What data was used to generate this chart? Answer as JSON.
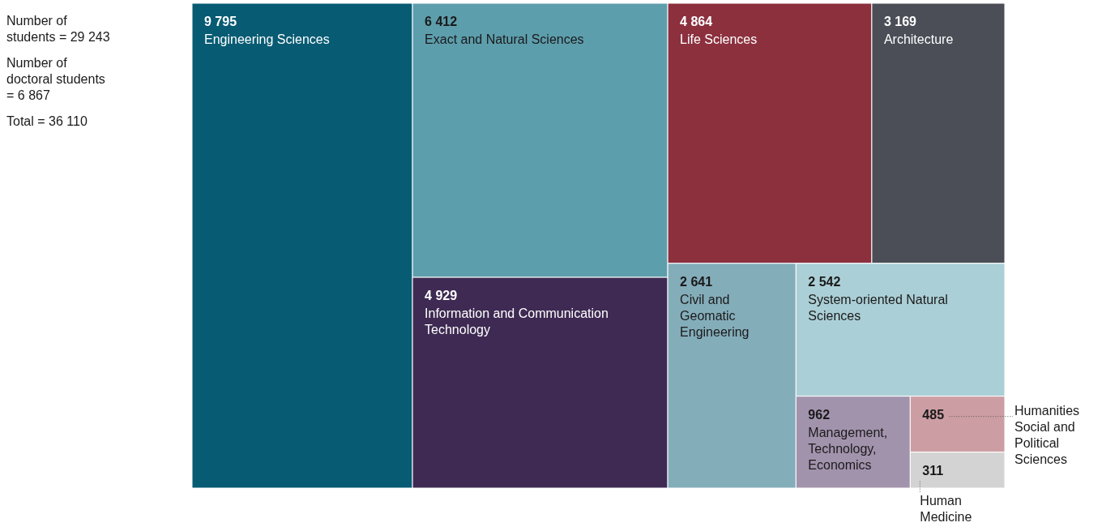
{
  "chart_data": {
    "type": "other",
    "categories": [
      "Engineering Sciences",
      "Exact and Natural Sciences",
      "Information and Communication Technology",
      "Life Sciences",
      "Architecture",
      "Civil and Geomatic Engineering",
      "System-oriented Natural Sciences",
      "Management, Technology, Economics",
      "Humanities Social and Political Sciences",
      "Human Medicine"
    ],
    "values": [
      9795,
      6412,
      4929,
      4864,
      3169,
      2641,
      2542,
      962,
      485,
      311
    ],
    "value_labels": [
      "9 795",
      "6 412",
      "4 929",
      "4 864",
      "3 169",
      "2 641",
      "2 542",
      "962",
      "485",
      "311"
    ],
    "colors": [
      "#075b73",
      "#5d9ead",
      "#3e2a52",
      "#8c303e",
      "#4b4e57",
      "#84adba",
      "#abcfd6",
      "#a293ad",
      "#cc9ea4",
      "#d3d3d3"
    ],
    "annotations": [
      "Number of students = 29 243",
      "Number of doctoral students = 6 867",
      "Total = 36 110"
    ]
  }
}
